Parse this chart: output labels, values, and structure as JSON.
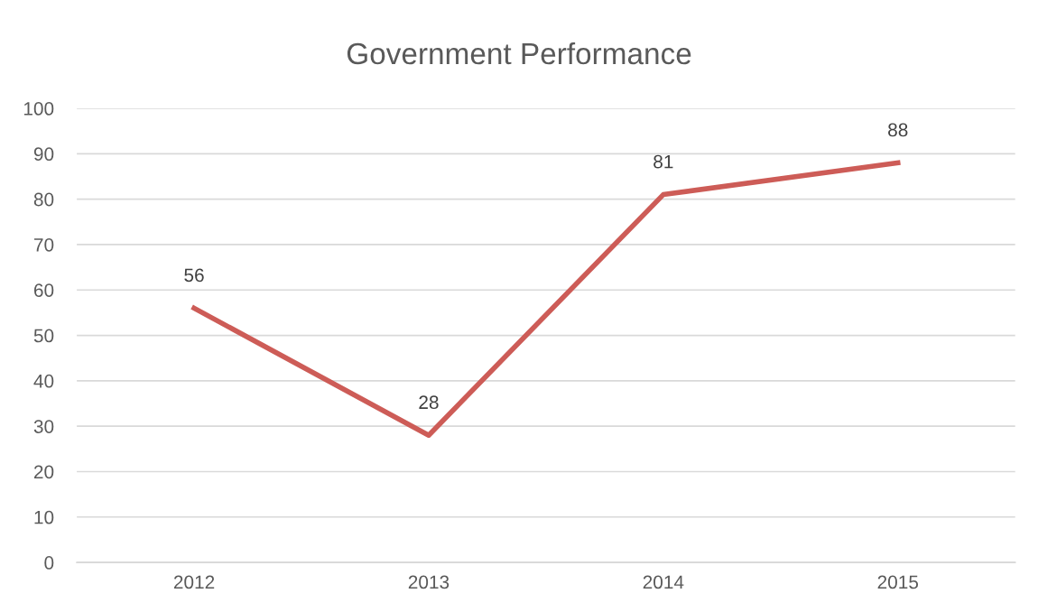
{
  "chart_data": {
    "type": "line",
    "title": "Government Performance",
    "categories": [
      "2012",
      "2013",
      "2014",
      "2015"
    ],
    "series": [
      {
        "color": "#cd5c57",
        "values": [
          56,
          28,
          81,
          88
        ]
      }
    ],
    "ylim": [
      0,
      100
    ],
    "yticks": [
      0,
      10,
      20,
      30,
      40,
      50,
      60,
      70,
      80,
      90,
      100
    ],
    "grid": "y",
    "data_labels": true,
    "marker": "none",
    "line_style": "solid"
  }
}
